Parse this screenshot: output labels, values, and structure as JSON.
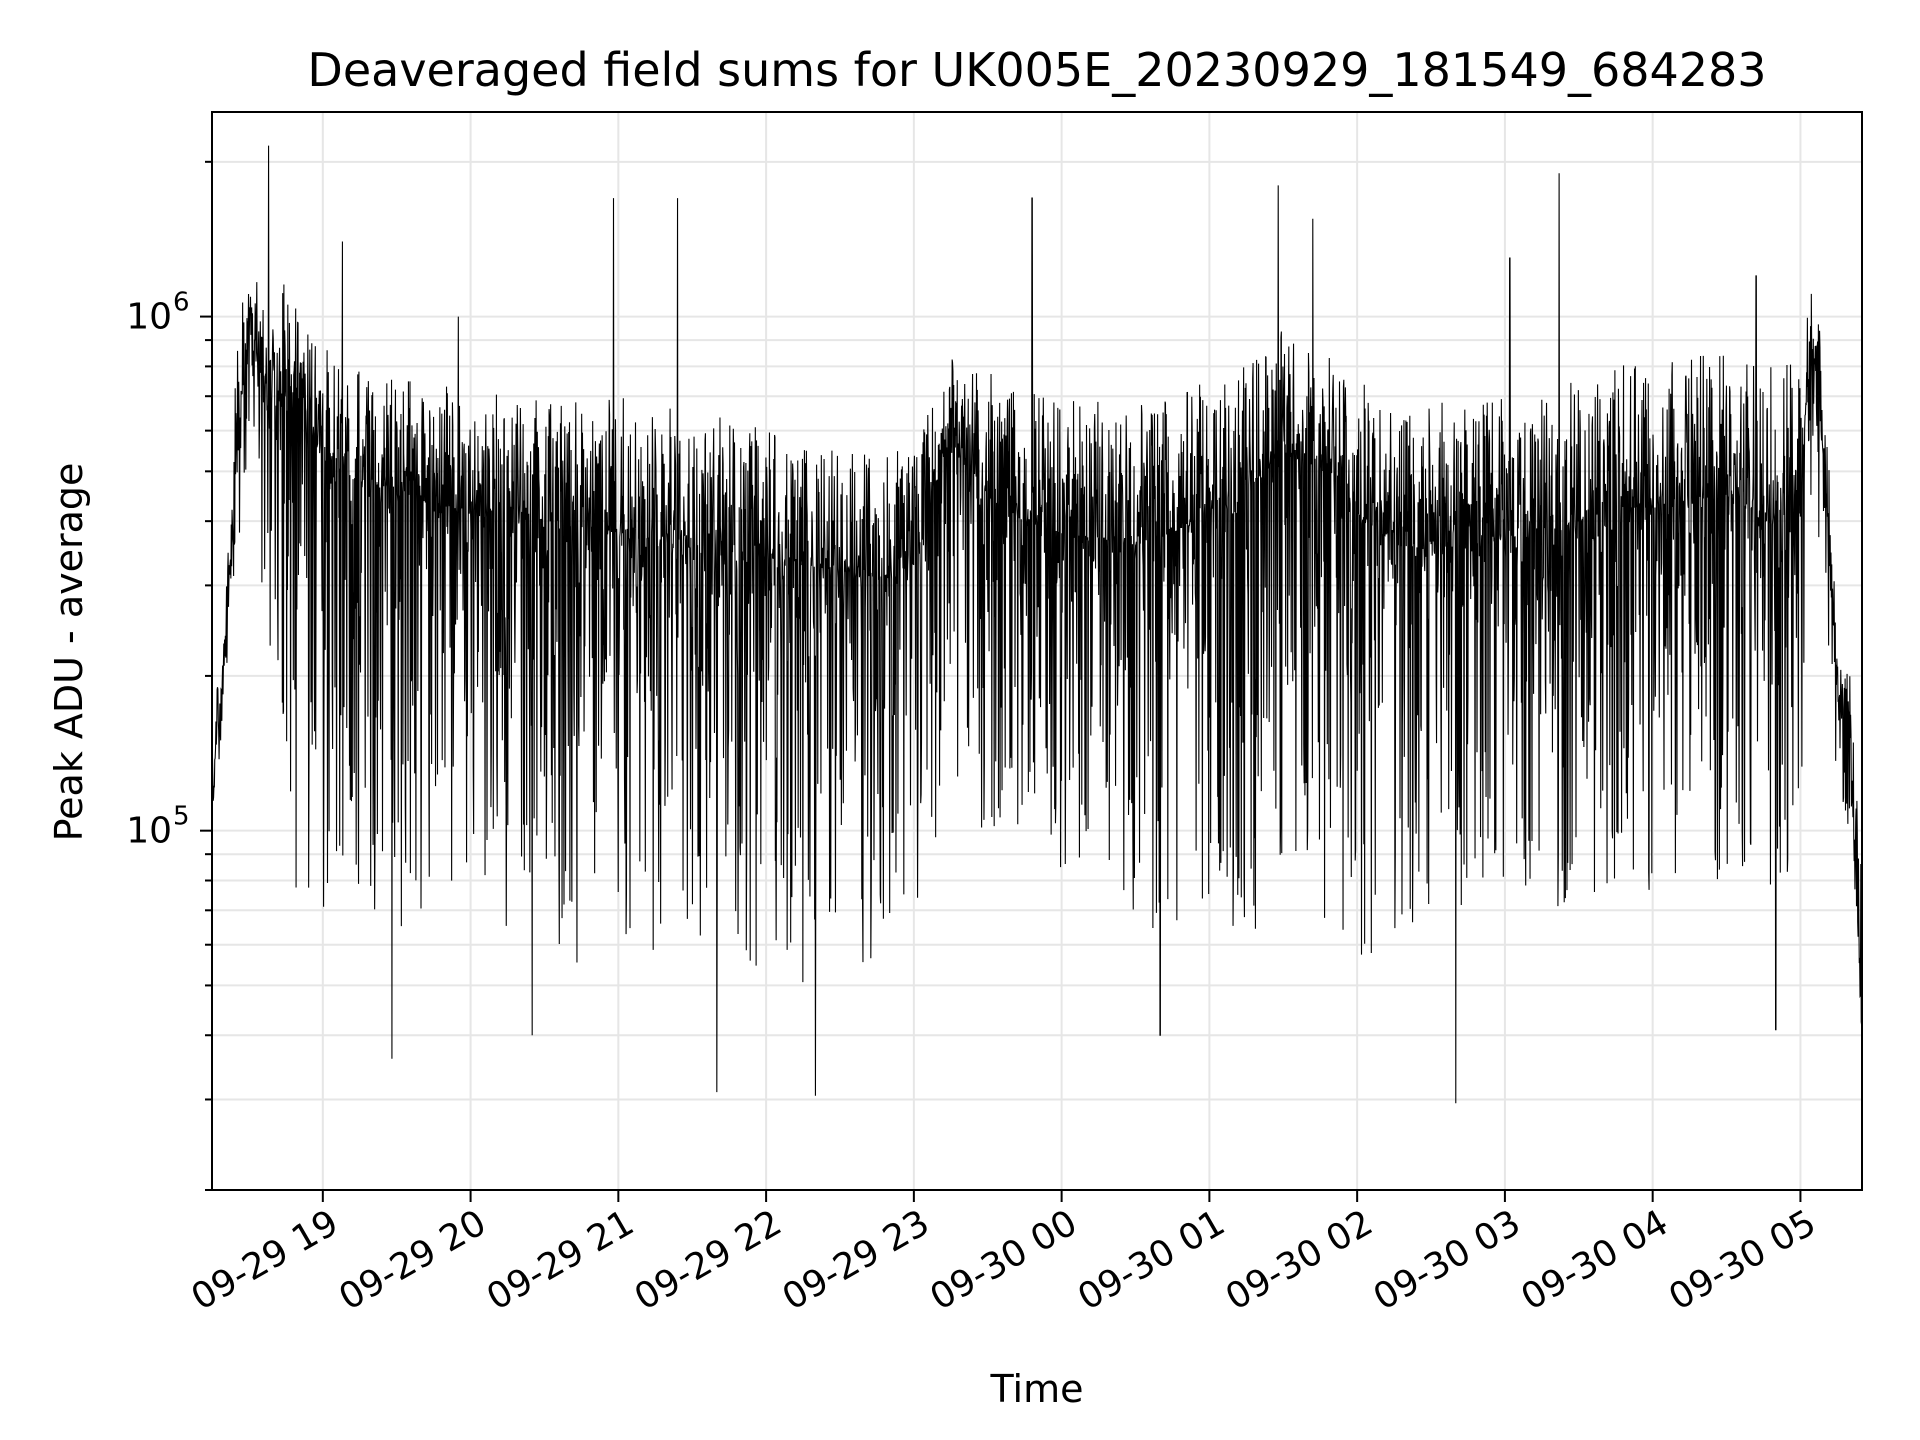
{
  "chart_data": {
    "type": "line",
    "title": "Deaveraged field sums for UK005E_20230929_181549_684283",
    "xlabel": "Time",
    "ylabel": "Peak ADU - average",
    "y_scale": "log",
    "ylim": [
      20000,
      2500000
    ],
    "xlim": [
      "2023-09-29 18:15",
      "2023-09-30 05:25"
    ],
    "grid": true,
    "line_color": "#000000",
    "x_ticks": [
      {
        "t": "2023-09-29 19:00",
        "label": "09-29 19"
      },
      {
        "t": "2023-09-29 20:00",
        "label": "09-29 20"
      },
      {
        "t": "2023-09-29 21:00",
        "label": "09-29 21"
      },
      {
        "t": "2023-09-29 22:00",
        "label": "09-29 22"
      },
      {
        "t": "2023-09-29 23:00",
        "label": "09-29 23"
      },
      {
        "t": "2023-09-30 00:00",
        "label": "09-30 00"
      },
      {
        "t": "2023-09-30 01:00",
        "label": "09-30 01"
      },
      {
        "t": "2023-09-30 02:00",
        "label": "09-30 02"
      },
      {
        "t": "2023-09-30 03:00",
        "label": "09-30 03"
      },
      {
        "t": "2023-09-30 04:00",
        "label": "09-30 04"
      },
      {
        "t": "2023-09-30 05:00",
        "label": "09-30 05"
      }
    ],
    "y_ticks": [
      {
        "value": 100000,
        "base": "10",
        "exp": "5"
      },
      {
        "value": 1000000,
        "base": "10",
        "exp": "6"
      }
    ],
    "series": [
      {
        "x": [
          "2023-09-29 18:15",
          "2023-09-29 18:20",
          "2023-09-29 18:25",
          "2023-09-29 18:30",
          "2023-09-29 18:35",
          "2023-09-29 18:40",
          "2023-09-29 18:45",
          "2023-09-29 18:50",
          "2023-09-29 18:55",
          "2023-09-29 19:00",
          "2023-09-29 19:15",
          "2023-09-29 19:30",
          "2023-09-29 19:45",
          "2023-09-29 20:00",
          "2023-09-29 20:15",
          "2023-09-29 20:30",
          "2023-09-29 20:45",
          "2023-09-29 21:00",
          "2023-09-29 21:15",
          "2023-09-29 21:30",
          "2023-09-29 21:45",
          "2023-09-29 22:00",
          "2023-09-29 22:15",
          "2023-09-29 22:30",
          "2023-09-29 22:45",
          "2023-09-29 23:00",
          "2023-09-29 23:15",
          "2023-09-29 23:30",
          "2023-09-29 23:45",
          "2023-09-30 00:00",
          "2023-09-30 00:15",
          "2023-09-30 00:30",
          "2023-09-30 00:45",
          "2023-09-30 01:00",
          "2023-09-30 01:15",
          "2023-09-30 01:30",
          "2023-09-30 01:45",
          "2023-09-30 02:00",
          "2023-09-30 02:15",
          "2023-09-30 02:30",
          "2023-09-30 02:45",
          "2023-09-30 03:00",
          "2023-09-30 03:15",
          "2023-09-30 03:30",
          "2023-09-30 03:45",
          "2023-09-30 04:00",
          "2023-09-30 04:15",
          "2023-09-30 04:30",
          "2023-09-30 04:45",
          "2023-09-30 05:00",
          "2023-09-30 05:05",
          "2023-09-30 05:10",
          "2023-09-30 05:15",
          "2023-09-30 05:20",
          "2023-09-30 05:25"
        ],
        "y": [
          120000,
          220000,
          500000,
          1000000,
          800000,
          650000,
          700000,
          750000,
          600000,
          520000,
          480000,
          460000,
          430000,
          420000,
          410000,
          400000,
          390000,
          380000,
          370000,
          360000,
          350000,
          340000,
          330000,
          320000,
          310000,
          330000,
          600000,
          450000,
          400000,
          380000,
          370000,
          360000,
          380000,
          420000,
          460000,
          550000,
          520000,
          420000,
          360000,
          350000,
          360000,
          370000,
          380000,
          400000,
          420000,
          430000,
          440000,
          450000,
          400000,
          420000,
          900000,
          500000,
          180000,
          170000,
          40000
        ],
        "upper": [
          150000,
          260000,
          900000,
          1300000,
          1100000,
          1050000,
          1200000,
          1000000,
          950000,
          880000,
          780000,
          760000,
          740000,
          720000,
          700000,
          690000,
          680000,
          700000,
          680000,
          660000,
          640000,
          600000,
          560000,
          560000,
          540000,
          560000,
          850000,
          780000,
          720000,
          700000,
          690000,
          680000,
          700000,
          760000,
          820000,
          950000,
          900000,
          760000,
          700000,
          680000,
          690000,
          700000,
          720000,
          760000,
          800000,
          820000,
          840000,
          860000,
          800000,
          820000,
          1200000,
          800000,
          220000,
          210000,
          100000
        ],
        "lower": [
          110000,
          160000,
          300000,
          600000,
          300000,
          200000,
          120000,
          70000,
          60000,
          70000,
          65000,
          62000,
          60000,
          75000,
          62000,
          58000,
          55000,
          60000,
          58000,
          55000,
          52000,
          55000,
          50000,
          52000,
          55000,
          70000,
          120000,
          90000,
          80000,
          75000,
          70000,
          65000,
          62000,
          60000,
          58000,
          75000,
          65000,
          55000,
          52000,
          60000,
          70000,
          75000,
          70000,
          72000,
          74000,
          76000,
          78000,
          80000,
          75000,
          78000,
          400000,
          250000,
          120000,
          100000,
          40000
        ],
        "spikes": [
          {
            "t": "2023-09-29 18:38",
            "value": 2150000
          },
          {
            "t": "2023-09-29 19:08",
            "value": 1400000
          },
          {
            "t": "2023-09-29 19:55",
            "value": 1000000
          },
          {
            "t": "2023-09-29 20:58",
            "value": 1700000
          },
          {
            "t": "2023-09-29 21:24",
            "value": 1700000
          },
          {
            "t": "2023-09-29 23:48",
            "value": 1700000
          },
          {
            "t": "2023-09-30 01:28",
            "value": 1800000
          },
          {
            "t": "2023-09-30 01:42",
            "value": 1550000
          },
          {
            "t": "2023-09-30 03:22",
            "value": 1900000
          },
          {
            "t": "2023-09-30 03:02",
            "value": 1300000
          },
          {
            "t": "2023-09-30 04:42",
            "value": 1200000
          },
          {
            "t": "2023-09-29 19:28",
            "value": 36000
          },
          {
            "t": "2023-09-29 21:40",
            "value": 31000
          },
          {
            "t": "2023-09-29 22:20",
            "value": 30500
          },
          {
            "t": "2023-09-30 02:40",
            "value": 29500
          },
          {
            "t": "2023-09-30 00:40",
            "value": 40000
          },
          {
            "t": "2023-09-29 20:25",
            "value": 40000
          },
          {
            "t": "2023-09-30 04:50",
            "value": 41000
          }
        ]
      }
    ]
  }
}
